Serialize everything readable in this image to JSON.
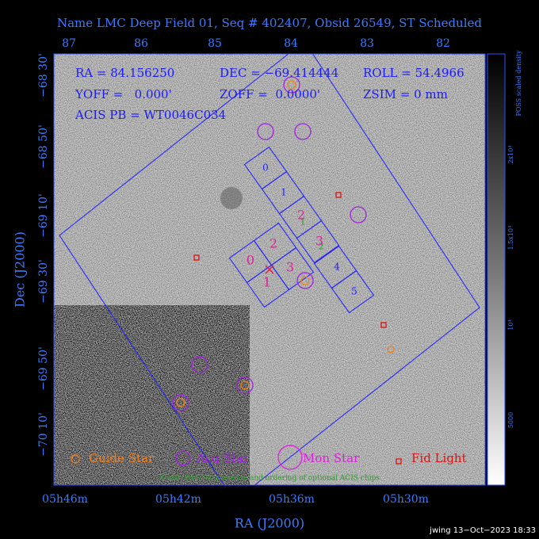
{
  "title": "Name LMC Deep Field 01, Seq # 402407, Obsid 26549, ST Scheduled",
  "top_axis_labels": [
    "87",
    "86",
    "85",
    "84",
    "83",
    "82"
  ],
  "left_axis_labels": [
    "−68 30'",
    "−68 50'",
    "−69 10'",
    "−69 30'",
    "−69 50'",
    "−70 10'"
  ],
  "bottom_axis_labels": [
    "05h46m",
    "05h42m",
    "05h36m",
    "05h30m"
  ],
  "x_label": "RA (J2000)",
  "y_label": "Dec (J2000)",
  "colorbar": {
    "label": "POSS scaled density",
    "tick_labels": [
      "2x10⁴",
      "1.5x10⁴",
      "10⁴",
      "5000"
    ]
  },
  "info": [
    [
      "RA = 84.156250",
      "DEC = −69.414444",
      "ROLL = 54.4966"
    ],
    [
      "YOFF =   0.000'",
      "ZOFF =  0.0000'",
      "ZSIM = 0 mm"
    ],
    [
      "ACIS PB = WT0046C034"
    ]
  ],
  "chips": {
    "i_array": [
      "0",
      "1",
      "2",
      "3",
      "4",
      "5"
    ],
    "s_array": [
      "0",
      "2",
      "3",
      "1"
    ]
  },
  "optional_chip_order": [
    "1",
    "2"
  ],
  "legend": [
    "Guide Star",
    "Acq Star",
    "Mon Star",
    "Fid Light"
  ],
  "note": "Green denotes presence and ordering of optional ACIS chips",
  "footer": "jwing 13−Oct−2023 18:33"
}
